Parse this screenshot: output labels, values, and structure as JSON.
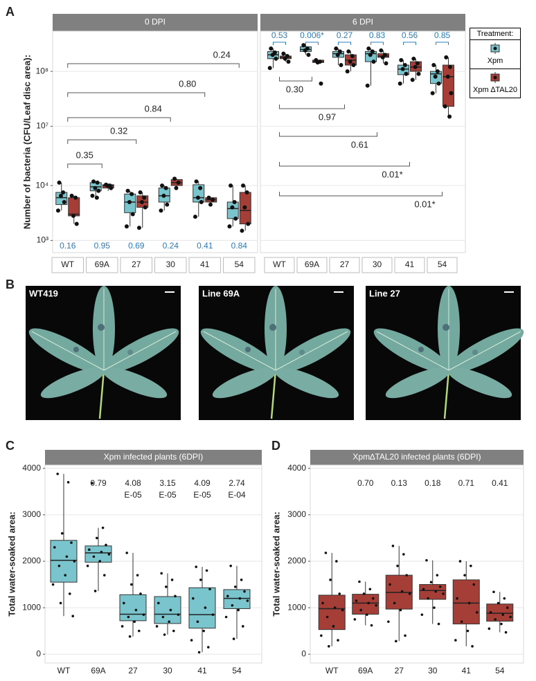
{
  "panel_labels": [
    "A",
    "B",
    "C",
    "D"
  ],
  "photos": [
    {
      "caption": "WT419"
    },
    {
      "caption": "Line 69A"
    },
    {
      "caption": "Line 27"
    }
  ],
  "chart_data": [
    {
      "type": "box",
      "title": "0 DPI",
      "ylabel": "Number of bacteria (CFU/Leaf disc area):",
      "log": true,
      "axis_break": [
        10000,
        10000000
      ],
      "grid": true,
      "ylim": [
        600,
        540000000
      ],
      "yticks": [
        {
          "value": 1000,
          "label": "10³"
        },
        {
          "value": 10000,
          "label": "10⁴"
        },
        {
          "value": 10000000,
          "label": "10⁷"
        },
        {
          "value": 100000000,
          "label": "10⁸"
        }
      ],
      "categories": [
        "WT",
        "69A",
        "27",
        "30",
        "41",
        "54"
      ],
      "legend_title": "Treatment:",
      "series": [
        {
          "name": "Xpm",
          "color": "#79c4cd",
          "boxes": [
            {
              "min": 3500,
              "q1": 4500,
              "median": 6000,
              "q3": 7500,
              "max": 14000,
              "points": [
                14000,
                7500,
                6500,
                5000,
                3500
              ]
            },
            {
              "min": 6000,
              "q1": 8000,
              "median": 9500,
              "q3": 14000,
              "max": 16000,
              "points": [
                16000,
                14000,
                9000,
                8000,
                6500,
                6000
              ]
            },
            {
              "min": 1800,
              "q1": 3200,
              "median": 5000,
              "q3": 7000,
              "max": 8000,
              "points": [
                8000,
                7000,
                5000,
                3000,
                1800
              ]
            },
            {
              "min": 3500,
              "q1": 5000,
              "median": 6500,
              "q3": 9000,
              "max": 10000,
              "points": [
                10000,
                9000,
                6500,
                4500,
                3500
              ]
            },
            {
              "min": 2700,
              "q1": 5000,
              "median": 6000,
              "q3": 11000,
              "max": 16000,
              "points": [
                16000,
                9000,
                6000,
                5000,
                2700
              ]
            },
            {
              "min": 1800,
              "q1": 2500,
              "median": 3800,
              "q3": 5000,
              "max": 10000,
              "points": [
                10000,
                5000,
                4000,
                2500,
                1800
              ]
            }
          ]
        },
        {
          "name": "Xpm ∆TAL20",
          "color": "#a53e36",
          "boxes": [
            {
              "min": 2000,
              "q1": 2800,
              "median": 3000,
              "q3": 6000,
              "max": 6500,
              "points": [
                6500,
                6000,
                2800,
                2000
              ]
            },
            {
              "min": 8000,
              "q1": 9000,
              "median": 10000,
              "q3": 11000,
              "max": 11000,
              "points": [
                11000,
                10000,
                10000,
                9000
              ]
            },
            {
              "min": 1700,
              "q1": 4000,
              "median": 5000,
              "q3": 6500,
              "max": 7500,
              "points": [
                7500,
                6000,
                5000,
                4000,
                1700
              ]
            },
            {
              "min": 8500,
              "q1": 10000,
              "median": 14000,
              "q3": 20000,
              "max": 22000,
              "points": [
                22000,
                14000,
                9000
              ]
            },
            {
              "min": 4500,
              "q1": 5000,
              "median": 5500,
              "q3": 6000,
              "max": 6000,
              "points": [
                6000,
                5500,
                4500
              ]
            },
            {
              "min": 1500,
              "q1": 2000,
              "median": 3500,
              "q3": 7500,
              "max": 10000,
              "points": [
                10000,
                7500,
                4000,
                2000,
                1500
              ]
            }
          ]
        }
      ],
      "pair_labels": [
        "0.16",
        "0.95",
        "0.69",
        "0.24",
        "0.41",
        "0.84"
      ],
      "pair_labels_position": "bottom",
      "comparisons": [
        "0.35",
        "0.32",
        "0.84",
        "0.80",
        "0.24"
      ],
      "comparison_position": "above"
    },
    {
      "type": "box",
      "title": "6 DPI",
      "log": true,
      "axis_break": [
        10000,
        10000000
      ],
      "grid": true,
      "ytick_labels": false,
      "ylim": [
        600,
        540000000
      ],
      "yticks": [
        1000,
        10000,
        10000000,
        100000000
      ],
      "categories": [
        "WT",
        "69A",
        "27",
        "30",
        "41",
        "54"
      ],
      "series": [
        {
          "color": "#79c4cd",
          "boxes": [
            {
              "min": 115000000,
              "q1": 170000000,
              "median": 200000000,
              "q3": 230000000,
              "max": 260000000,
              "points": [
                260000000,
                220000000,
                200000000,
                170000000,
                115000000
              ]
            },
            {
              "min": 200000000,
              "q1": 230000000,
              "median": 250000000,
              "q3": 280000000,
              "max": 300000000,
              "points": [
                300000000,
                260000000,
                240000000,
                200000000
              ]
            },
            {
              "min": 130000000,
              "q1": 180000000,
              "median": 210000000,
              "q3": 230000000,
              "max": 260000000,
              "points": [
                260000000,
                230000000,
                200000000,
                130000000
              ]
            },
            {
              "min": 55000000,
              "q1": 150000000,
              "median": 210000000,
              "q3": 230000000,
              "max": 260000000,
              "points": [
                260000000,
                230000000,
                200000000,
                150000000,
                55000000
              ]
            },
            {
              "min": 60000000,
              "q1": 87000000,
              "median": 110000000,
              "q3": 130000000,
              "max": 160000000,
              "points": [
                160000000,
                130000000,
                110000000,
                90000000,
                60000000
              ]
            },
            {
              "min": 40000000,
              "q1": 60000000,
              "median": 90000000,
              "q3": 100000000,
              "max": 130000000,
              "points": [
                130000000,
                100000000,
                80000000,
                60000000,
                40000000
              ]
            }
          ]
        },
        {
          "color": "#a53e36",
          "boxes": [
            {
              "min": 150000000,
              "q1": 170000000,
              "median": 180000000,
              "q3": 190000000,
              "max": 210000000,
              "points": [
                210000000,
                190000000,
                170000000,
                150000000
              ]
            },
            {
              "min": 140000000,
              "q1": 145000000,
              "median": 150000000,
              "q3": 160000000,
              "max": 160000000,
              "points": [
                160000000,
                150000000,
                145000000,
                60000000
              ]
            },
            {
              "min": 100000000,
              "q1": 130000000,
              "median": 160000000,
              "q3": 200000000,
              "max": 230000000,
              "points": [
                230000000,
                190000000,
                150000000,
                130000000,
                100000000
              ]
            },
            {
              "min": 140000000,
              "q1": 180000000,
              "median": 190000000,
              "q3": 210000000,
              "max": 240000000,
              "points": [
                240000000,
                200000000,
                180000000,
                140000000
              ]
            },
            {
              "min": 70000000,
              "q1": 100000000,
              "median": 120000000,
              "q3": 150000000,
              "max": 170000000,
              "points": [
                170000000,
                140000000,
                120000000,
                90000000,
                70000000
              ]
            },
            {
              "min": 15000000,
              "q1": 23000000,
              "median": 80000000,
              "q3": 130000000,
              "max": 180000000,
              "points": [
                180000000,
                120000000,
                80000000,
                40000000,
                23000000,
                15000000
              ]
            }
          ]
        }
      ],
      "pair_labels": [
        "0.53",
        "0.006*",
        "0.27",
        "0.83",
        "0.56",
        "0.85"
      ],
      "pair_labels_position": "top",
      "comparisons": [
        "0.30",
        "0.97",
        "0.61",
        "0.01*",
        "0.01*"
      ],
      "comparison_position": "below"
    },
    {
      "type": "box",
      "title": "Xpm infected plants (6DPI)",
      "ylabel": "Total water-soaked area:",
      "grid": true,
      "ylim": [
        -190,
        4070
      ],
      "yticks": [
        0,
        1000,
        2000,
        3000,
        4000
      ],
      "categories": [
        "WT",
        "69A",
        "27",
        "30",
        "41",
        "54"
      ],
      "series": [
        {
          "color": "#79c4cd",
          "boxes": [
            {
              "min": 820,
              "q1": 1550,
              "median": 2020,
              "q3": 2450,
              "max": 3880,
              "points": [
                3880,
                3700,
                2600,
                2400,
                2300,
                2100,
                2000,
                1900,
                1700,
                1500,
                1300,
                1100,
                820
              ]
            },
            {
              "min": 1360,
              "q1": 1980,
              "median": 2180,
              "q3": 2330,
              "max": 2720,
              "points": [
                3680,
                2720,
                2500,
                2350,
                2250,
                2200,
                2150,
                2100,
                2000,
                1900,
                1700,
                1360
              ]
            },
            {
              "min": 380,
              "q1": 720,
              "median": 860,
              "q3": 1280,
              "max": 2180,
              "points": [
                2180,
                1700,
                1500,
                1300,
                1100,
                950,
                850,
                800,
                700,
                600,
                500,
                380
              ]
            },
            {
              "min": 420,
              "q1": 660,
              "median": 860,
              "q3": 1240,
              "max": 1740,
              "points": [
                1740,
                1600,
                1450,
                1250,
                1100,
                950,
                850,
                800,
                700,
                600,
                500,
                420
              ]
            },
            {
              "min": 40,
              "q1": 560,
              "median": 850,
              "q3": 1430,
              "max": 1880,
              "points": [
                1880,
                1800,
                1600,
                1400,
                1200,
                1000,
                850,
                700,
                500,
                300,
                150,
                40
              ]
            },
            {
              "min": 330,
              "q1": 980,
              "median": 1200,
              "q3": 1390,
              "max": 1900,
              "points": [
                1900,
                1600,
                1450,
                1350,
                1250,
                1200,
                1150,
                1050,
                950,
                800,
                600,
                330
              ]
            }
          ]
        }
      ],
      "group_labels": [
        null,
        [
          "0.79"
        ],
        [
          "4.08",
          "E-05"
        ],
        [
          "3.15",
          "E-05"
        ],
        [
          "4.09",
          "E-05"
        ],
        [
          "2.74",
          "E-04"
        ]
      ]
    },
    {
      "type": "box",
      "title": "Xpm∆TAL20 infected plants (6DPI)",
      "ylabel": "Total water-soaked area:",
      "grid": true,
      "ylim": [
        -190,
        4070
      ],
      "yticks": [
        0,
        1000,
        2000,
        3000,
        4000
      ],
      "categories": [
        "WT",
        "69A",
        "27",
        "30",
        "41",
        "54"
      ],
      "series": [
        {
          "color": "#a53e36",
          "boxes": [
            {
              "min": 170,
              "q1": 530,
              "median": 980,
              "q3": 1270,
              "max": 2180,
              "points": [
                2180,
                2000,
                1600,
                1300,
                1100,
                1000,
                950,
                800,
                600,
                400,
                300,
                170
              ]
            },
            {
              "min": 620,
              "q1": 860,
              "median": 1100,
              "q3": 1290,
              "max": 1560,
              "points": [
                1560,
                1400,
                1300,
                1200,
                1150,
                1100,
                1050,
                950,
                850,
                750,
                620
              ]
            },
            {
              "min": 280,
              "q1": 970,
              "median": 1330,
              "q3": 1700,
              "max": 2330,
              "points": [
                2330,
                2150,
                1900,
                1700,
                1500,
                1350,
                1300,
                1100,
                950,
                700,
                400,
                280
              ]
            },
            {
              "min": 650,
              "q1": 1180,
              "median": 1370,
              "q3": 1500,
              "max": 2020,
              "points": [
                2020,
                1700,
                1550,
                1450,
                1400,
                1350,
                1300,
                1200,
                1000,
                850,
                650
              ]
            },
            {
              "min": 170,
              "q1": 650,
              "median": 1100,
              "q3": 1600,
              "max": 2000,
              "points": [
                2000,
                1900,
                1700,
                1500,
                1200,
                1100,
                900,
                700,
                500,
                300,
                170
              ]
            },
            {
              "min": 470,
              "q1": 710,
              "median": 880,
              "q3": 1080,
              "max": 1340,
              "points": [
                1340,
                1200,
                1100,
                1000,
                900,
                850,
                800,
                750,
                650,
                550,
                470
              ]
            }
          ]
        }
      ],
      "group_labels": [
        null,
        [
          "0.70"
        ],
        [
          "0.13"
        ],
        [
          "0.18"
        ],
        [
          "0.71"
        ],
        [
          "0.41"
        ]
      ]
    }
  ]
}
